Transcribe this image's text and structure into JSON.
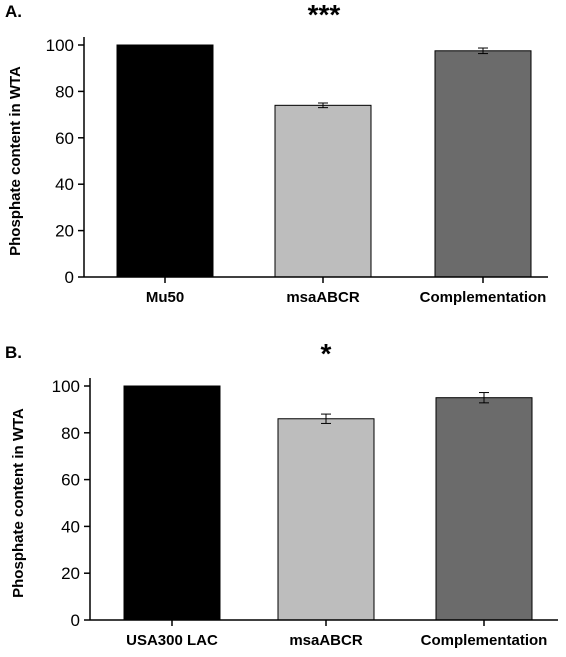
{
  "chart_data": [
    {
      "type": "bar",
      "panel_label": "A.",
      "significance": "***",
      "ylabel": "Phosphate content in WTA",
      "ylim": [
        0,
        110
      ],
      "yticks": [
        0,
        20,
        40,
        60,
        80,
        100
      ],
      "categories": [
        "Mu50",
        "msaABCR",
        "Complementation"
      ],
      "values": [
        100,
        74,
        97.5
      ],
      "errors": [
        0,
        1,
        1.2
      ],
      "colors": [
        "#000000",
        "#bdbdbd",
        "#6b6b6b"
      ]
    },
    {
      "type": "bar",
      "panel_label": "B.",
      "significance": "*",
      "ylabel": "Phosphate content in WTA",
      "ylim": [
        0,
        110
      ],
      "yticks": [
        0,
        20,
        40,
        60,
        80,
        100
      ],
      "categories": [
        "USA300 LAC",
        "msaABCR",
        "Complementation"
      ],
      "values": [
        100,
        86,
        95
      ],
      "errors": [
        0,
        2,
        2.2
      ],
      "colors": [
        "#000000",
        "#bdbdbd",
        "#6b6b6b"
      ]
    }
  ]
}
